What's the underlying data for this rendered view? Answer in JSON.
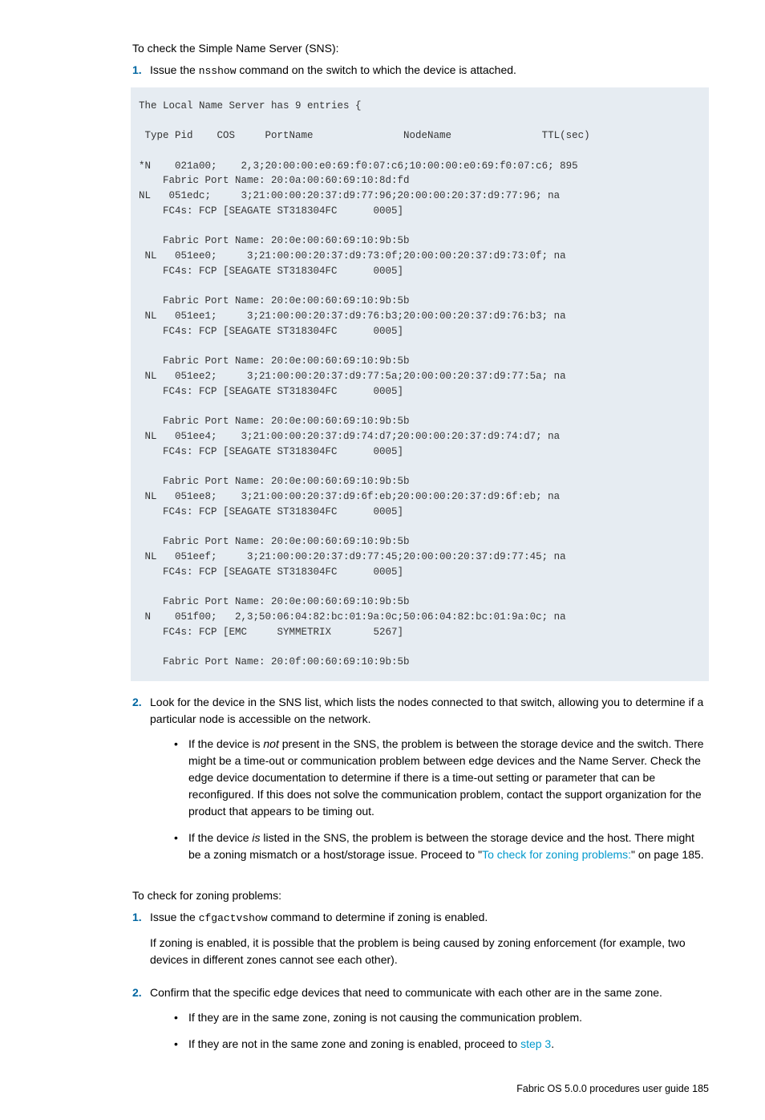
{
  "sns_intro": "To check the Simple Name Server (SNS):",
  "sns_steps": {
    "s1_pre": "Issue the ",
    "s1_cmd": "nsshow",
    "s1_post": " command on the switch to which the device is attached.",
    "s2": "Look for the device in the SNS list, which lists the nodes connected to that switch, allowing you to determine if a particular node is accessible on the network."
  },
  "nums": {
    "n1": "1.",
    "n2": "2."
  },
  "code": "The Local Name Server has 9 entries {\n\n Type Pid    COS     PortName               NodeName               TTL(sec)\n\n*N    021a00;    2,3;20:00:00:e0:69:f0:07:c6;10:00:00:e0:69:f0:07:c6; 895\n    Fabric Port Name: 20:0a:00:60:69:10:8d:fd\nNL   051edc;     3;21:00:00:20:37:d9:77:96;20:00:00:20:37:d9:77:96; na\n    FC4s: FCP [SEAGATE ST318304FC      0005]\n\n    Fabric Port Name: 20:0e:00:60:69:10:9b:5b\n NL   051ee0;     3;21:00:00:20:37:d9:73:0f;20:00:00:20:37:d9:73:0f; na\n    FC4s: FCP [SEAGATE ST318304FC      0005]\n\n    Fabric Port Name: 20:0e:00:60:69:10:9b:5b\n NL   051ee1;     3;21:00:00:20:37:d9:76:b3;20:00:00:20:37:d9:76:b3; na\n    FC4s: FCP [SEAGATE ST318304FC      0005]\n\n    Fabric Port Name: 20:0e:00:60:69:10:9b:5b\n NL   051ee2;     3;21:00:00:20:37:d9:77:5a;20:00:00:20:37:d9:77:5a; na\n    FC4s: FCP [SEAGATE ST318304FC      0005]\n\n    Fabric Port Name: 20:0e:00:60:69:10:9b:5b\n NL   051ee4;    3;21:00:00:20:37:d9:74:d7;20:00:00:20:37:d9:74:d7; na\n    FC4s: FCP [SEAGATE ST318304FC      0005]\n\n    Fabric Port Name: 20:0e:00:60:69:10:9b:5b\n NL   051ee8;    3;21:00:00:20:37:d9:6f:eb;20:00:00:20:37:d9:6f:eb; na\n    FC4s: FCP [SEAGATE ST318304FC      0005]\n\n    Fabric Port Name: 20:0e:00:60:69:10:9b:5b\n NL   051eef;     3;21:00:00:20:37:d9:77:45;20:00:00:20:37:d9:77:45; na\n    FC4s: FCP [SEAGATE ST318304FC      0005]\n\n    Fabric Port Name: 20:0e:00:60:69:10:9b:5b\n N    051f00;   2,3;50:06:04:82:bc:01:9a:0c;50:06:04:82:bc:01:9a:0c; na\n    FC4s: FCP [EMC     SYMMETRIX       5267]\n\n    Fabric Port Name: 20:0f:00:60:69:10:9b:5b",
  "sns_bullets": {
    "b1_pre": "If the device is ",
    "b1_not": "not",
    "b1_post": " present in the SNS, the problem is between the storage device and the switch. There might be a time-out or communication problem between edge devices and the Name Server. Check the edge device documentation to determine if there is a time-out setting or parameter that can be reconfigured. If this does not solve the communication problem, contact the support organization for the product that appears to be timing out.",
    "b2_pre": "If the device ",
    "b2_is": "is",
    "b2_mid": " listed in the SNS, the problem is between the storage device and the host. There might be a zoning mismatch or a host/storage issue. Proceed to \"",
    "b2_link": "To check for zoning problems:",
    "b2_post": "\" on page 185."
  },
  "zoning_heading": "To check for zoning problems:",
  "zoning_steps": {
    "s1_pre": "Issue the ",
    "s1_cmd": "cfgactvshow",
    "s1_post": " command to determine if zoning is enabled.",
    "s1_para": "If zoning is enabled, it is possible that the problem is being caused by zoning enforcement (for example, two devices in different zones cannot see each other).",
    "s2": "Confirm that the specific edge devices that need to communicate with each other are in the same zone."
  },
  "zoning_bullets": {
    "b1": "If they are in the same zone, zoning is not causing the communication problem.",
    "b2_pre": "If they are not in the same zone and zoning is enabled, proceed to ",
    "b2_link": "step 3",
    "b2_post": "."
  },
  "bullet_char": "•",
  "footer": "Fabric OS 5.0.0 procedures user guide   185",
  "colors": {
    "code_bg": "#e6ecf2",
    "step_num": "#0066a1",
    "link": "#0099cc"
  }
}
